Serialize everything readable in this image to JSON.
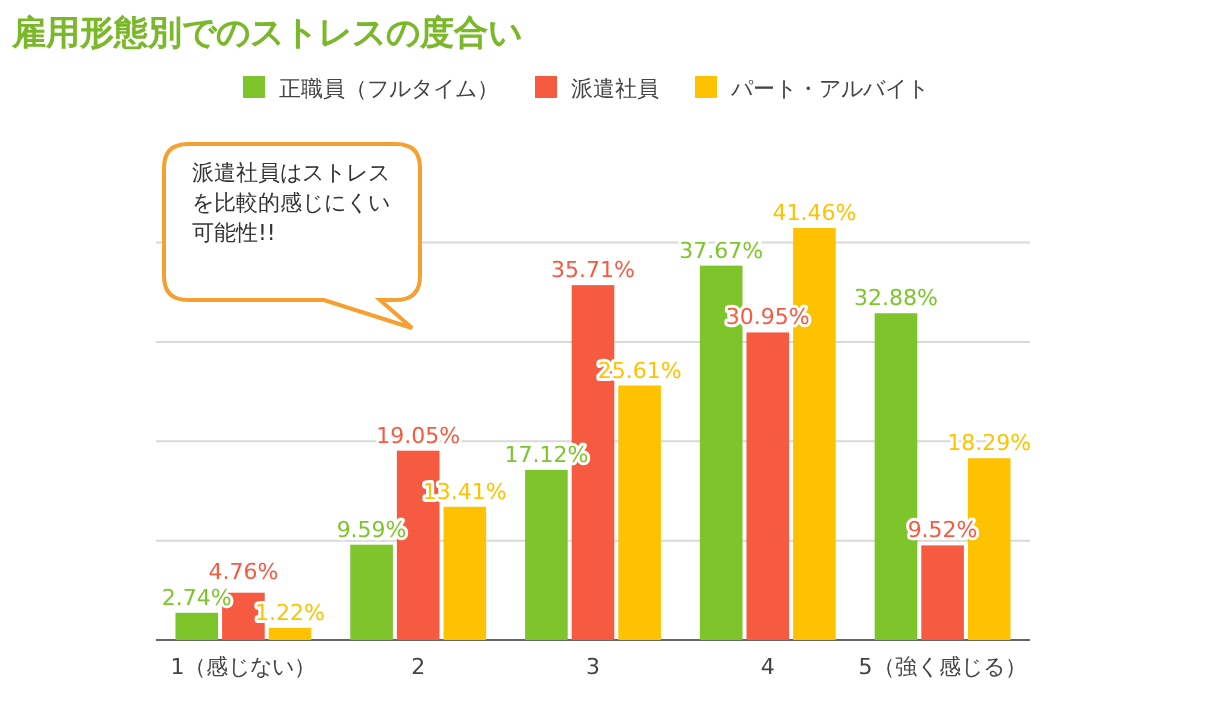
{
  "chart_data": {
    "type": "bar",
    "title": "雇用形態別でのストレスの度合い",
    "categories": [
      "1（感じない）",
      "2",
      "3",
      "4",
      "5（強く感じる）"
    ],
    "series": [
      {
        "name": "正職員（フルタイム）",
        "color": "#7dc52a",
        "values": [
          2.74,
          9.59,
          17.12,
          37.67,
          32.88
        ],
        "value_labels": [
          "2.74%",
          "9.59%",
          "17.12%",
          "37.67%",
          "32.88%"
        ]
      },
      {
        "name": "派遣社員",
        "color": "#f65a40",
        "values": [
          4.76,
          19.05,
          35.71,
          30.95,
          9.52
        ],
        "value_labels": [
          "4.76%",
          "19.05%",
          "35.71%",
          "30.95%",
          "9.52%"
        ]
      },
      {
        "name": "パート・アルバイト",
        "color": "#fec200",
        "values": [
          1.22,
          13.41,
          25.61,
          41.46,
          18.29
        ],
        "value_labels": [
          "1.22%",
          "13.41%",
          "25.61%",
          "41.46%",
          "18.29%"
        ]
      }
    ],
    "yticks": [
      {
        "value": 0,
        "label": null
      },
      {
        "value": 10,
        "label": null
      },
      {
        "value": 20,
        "label": null
      },
      {
        "value": 30,
        "label": null
      },
      {
        "value": 40,
        "label": null
      }
    ],
    "grid": "y",
    "legend": "top",
    "annotations": [
      "派遣社員はストレスを比較的感じにくい可能性!!"
    ]
  }
}
